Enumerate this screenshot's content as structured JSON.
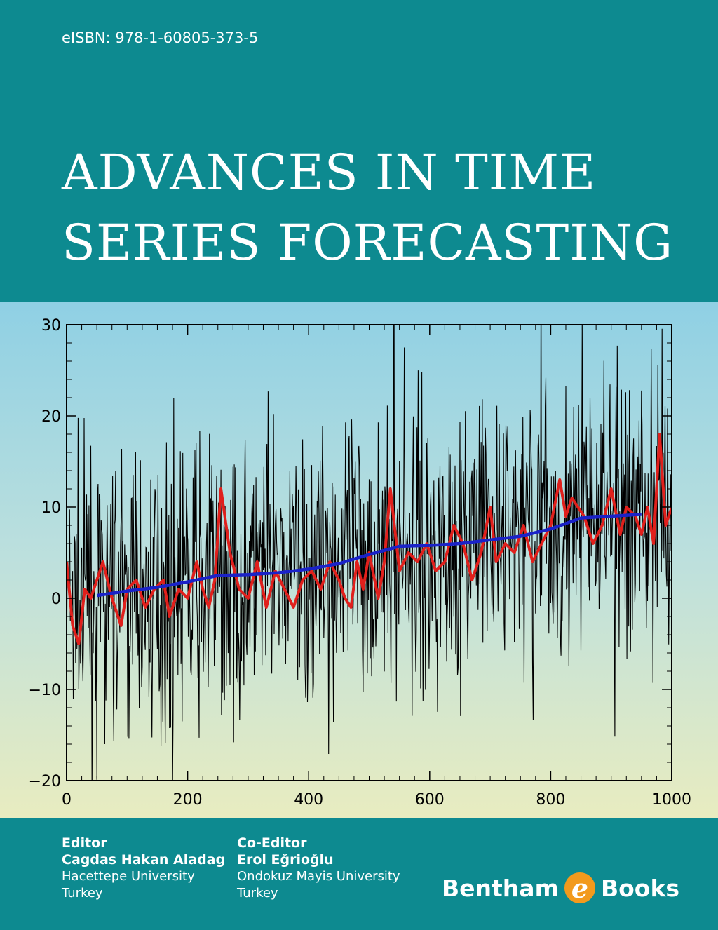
{
  "isbn": "eISBN: 978-1-60805-373-5",
  "title_line1": "ADVANCES IN TIME",
  "title_line2": "SERIES FORECASTING",
  "editor": {
    "role": "Editor",
    "name": "Cagdas Hakan Aladag",
    "affiliation": "Hacettepe University",
    "country": "Turkey"
  },
  "coeditor": {
    "role": "Co-Editor",
    "name": "Erol Eğrioğlu",
    "affiliation": "Ondokuz Mayis University",
    "country": "Turkey"
  },
  "publisher": {
    "name_left": "Bentham",
    "logo_letter": "e",
    "name_right": "Books"
  },
  "colors": {
    "teal": "#0d8a90",
    "series": "#000000",
    "smoothed": "#e0201c",
    "trend": "#1a22c8",
    "logo": "#f29a1d"
  },
  "chart_data": {
    "type": "line",
    "xlim": [
      0,
      1000
    ],
    "ylim": [
      -20,
      30
    ],
    "x_ticks": [
      "0",
      "200",
      "400",
      "600",
      "800",
      "1000"
    ],
    "y_ticks": [
      "−20",
      "−10",
      "0",
      "10",
      "20",
      "30"
    ],
    "series": [
      {
        "color": "#e0201c",
        "x": [
          0,
          10,
          20,
          30,
          40,
          50,
          60,
          75,
          90,
          100,
          115,
          130,
          145,
          160,
          170,
          185,
          200,
          215,
          225,
          235,
          245,
          255,
          270,
          285,
          300,
          315,
          330,
          345,
          360,
          375,
          390,
          405,
          420,
          435,
          450,
          460,
          470,
          480,
          490,
          500,
          515,
          525,
          535,
          550,
          565,
          580,
          595,
          610,
          625,
          640,
          655,
          670,
          685,
          700,
          710,
          725,
          740,
          755,
          770,
          785,
          800,
          815,
          825,
          835,
          845,
          855,
          870,
          885,
          900,
          915,
          925,
          940,
          945,
          950,
          960,
          970,
          980,
          990,
          1000
        ],
        "y": [
          4,
          -3,
          -5,
          1,
          0,
          2,
          4,
          0,
          -3,
          1,
          2,
          -1,
          1,
          2,
          -2,
          1,
          0,
          4,
          1,
          -1,
          2,
          12,
          5,
          1,
          0,
          4,
          -1,
          3,
          1,
          -1,
          2,
          3,
          1,
          4,
          2,
          0,
          -1,
          4,
          1,
          5,
          0,
          4,
          12,
          3,
          5,
          4,
          6,
          3,
          4,
          8,
          6,
          2,
          5,
          10,
          4,
          6,
          5,
          8,
          4,
          6,
          8,
          13,
          9,
          11,
          10,
          9,
          6,
          8,
          12,
          7,
          10,
          9,
          8,
          7,
          10,
          6,
          18,
          8,
          10
        ]
      },
      {
        "color": "#1a22c8",
        "x": [
          50,
          100,
          150,
          200,
          250,
          300,
          350,
          400,
          450,
          500,
          550,
          600,
          650,
          700,
          750,
          800,
          850,
          900,
          950
        ],
        "y": [
          0.3,
          0.8,
          1.2,
          1.8,
          2.5,
          2.6,
          2.8,
          3.2,
          3.8,
          4.8,
          5.7,
          5.8,
          6.0,
          6.4,
          6.8,
          7.6,
          8.8,
          9.0,
          9.2
        ]
      }
    ],
    "noise": {
      "color": "#000000",
      "points": 1000,
      "center_start": -1,
      "center_end": 10
    }
  }
}
